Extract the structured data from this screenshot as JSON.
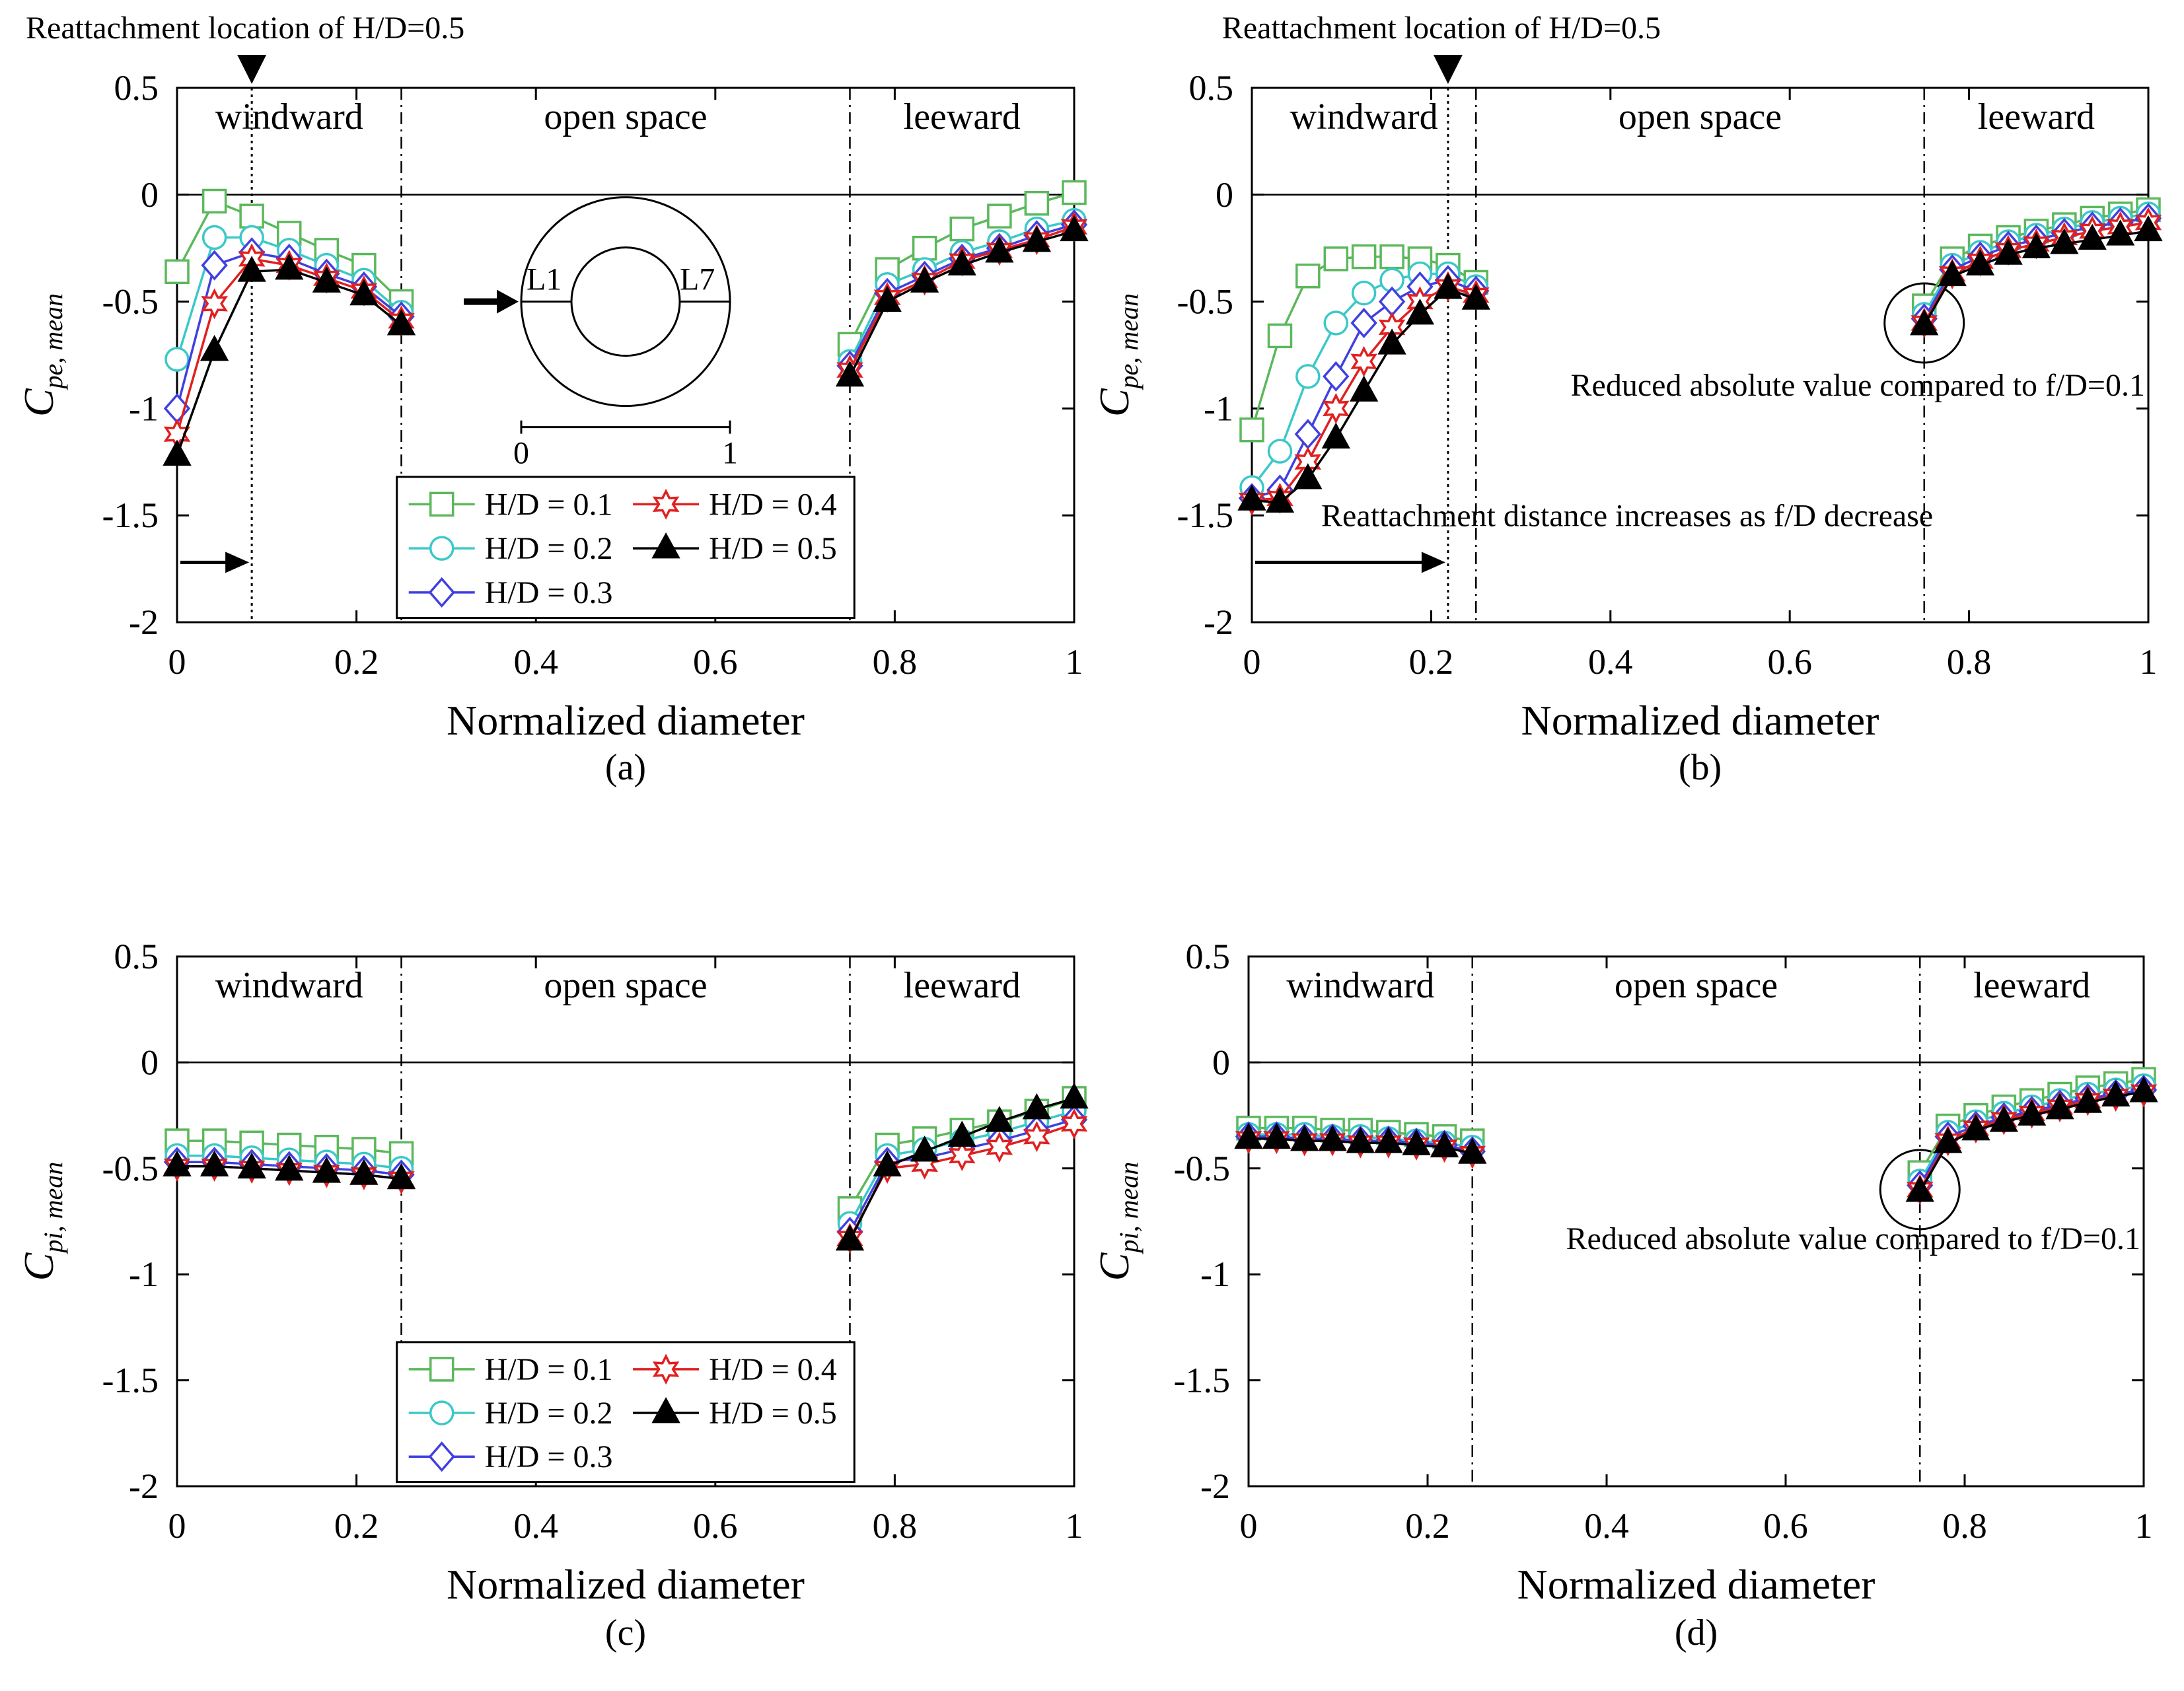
{
  "markers": {
    "s1": "square",
    "s2": "circle",
    "s3": "diamond",
    "s4": "star",
    "s5": "triangle"
  },
  "colors": {
    "s1": "#5cb85c",
    "s2": "#3cc8c8",
    "s3": "#4040e0",
    "s4": "#e02020",
    "s5": "#000000"
  },
  "regions": {
    "windward": "windward",
    "open": "open space",
    "leeward": "leeward"
  },
  "legend_labels": {
    "s1": "H/D = 0.1",
    "s2": "H/D = 0.2",
    "s3": "H/D = 0.3",
    "s4": "H/D = 0.4",
    "s5": "H/D = 0.5"
  },
  "inset": {
    "l1": "L1",
    "l7": "L7",
    "s0": "0",
    "s1": "1"
  },
  "chart_data": [
    {
      "type": "line",
      "panel_label": "(a)",
      "xlabel": "Normalized diameter",
      "ylabel": "C",
      "ylabel_sub": "pe, mean",
      "xlim": [
        0,
        1
      ],
      "ylim": [
        -2,
        0.5
      ],
      "xticks": [
        "0",
        "0.2",
        "0.4",
        "0.6",
        "0.8",
        "1"
      ],
      "yticks": [
        "-2",
        "-1.5",
        "-1",
        "-0.5",
        "0",
        "0.5"
      ],
      "annotations": {
        "top": "Reattachment location of H/D=0.5"
      },
      "series": [
        {
          "name": "H/D = 0.1",
          "x": [
            0,
            0.0417,
            0.0833,
            0.125,
            0.1667,
            0.2083,
            0.25,
            0.75,
            0.7917,
            0.8333,
            0.875,
            0.9167,
            0.9583,
            1
          ],
          "y": [
            -0.36,
            -0.03,
            -0.1,
            -0.18,
            -0.26,
            -0.33,
            -0.5,
            -0.7,
            -0.35,
            -0.25,
            -0.16,
            -0.1,
            -0.04,
            0.01
          ]
        },
        {
          "name": "H/D = 0.2",
          "x": [
            0,
            0.0417,
            0.0833,
            0.125,
            0.1667,
            0.2083,
            0.25,
            0.75,
            0.7917,
            0.8333,
            0.875,
            0.9167,
            0.9583,
            1
          ],
          "y": [
            -0.77,
            -0.2,
            -0.2,
            -0.26,
            -0.33,
            -0.4,
            -0.55,
            -0.78,
            -0.42,
            -0.35,
            -0.27,
            -0.22,
            -0.16,
            -0.12
          ]
        },
        {
          "name": "H/D = 0.3",
          "x": [
            0,
            0.0417,
            0.0833,
            0.125,
            0.1667,
            0.2083,
            0.25,
            0.75,
            0.7917,
            0.8333,
            0.875,
            0.9167,
            0.9583,
            1
          ],
          "y": [
            -1.0,
            -0.33,
            -0.27,
            -0.3,
            -0.37,
            -0.43,
            -0.57,
            -0.8,
            -0.46,
            -0.38,
            -0.3,
            -0.25,
            -0.19,
            -0.14
          ]
        },
        {
          "name": "H/D = 0.4",
          "x": [
            0,
            0.0417,
            0.0833,
            0.125,
            0.1667,
            0.2083,
            0.25,
            0.75,
            0.7917,
            0.8333,
            0.875,
            0.9167,
            0.9583,
            1
          ],
          "y": [
            -1.12,
            -0.51,
            -0.3,
            -0.33,
            -0.39,
            -0.45,
            -0.59,
            -0.82,
            -0.48,
            -0.4,
            -0.31,
            -0.26,
            -0.21,
            -0.15
          ]
        },
        {
          "name": "H/D = 0.5",
          "x": [
            0,
            0.0417,
            0.0833,
            0.125,
            0.1667,
            0.2083,
            0.25,
            0.75,
            0.7917,
            0.8333,
            0.875,
            0.9167,
            0.9583,
            1
          ],
          "y": [
            -1.22,
            -0.73,
            -0.36,
            -0.35,
            -0.41,
            -0.47,
            -0.61,
            -0.85,
            -0.5,
            -0.41,
            -0.33,
            -0.27,
            -0.22,
            -0.17
          ]
        }
      ]
    },
    {
      "type": "line",
      "panel_label": "(b)",
      "xlabel": "Normalized diameter",
      "ylabel": "C",
      "ylabel_sub": "pe, mean",
      "xlim": [
        0,
        1
      ],
      "ylim": [
        -2,
        0.5
      ],
      "xticks": [
        "0",
        "0.2",
        "0.4",
        "0.6",
        "0.8",
        "1"
      ],
      "yticks": [
        "-2",
        "-1.5",
        "-1",
        "-0.5",
        "0",
        "0.5"
      ],
      "annotations": {
        "top": "Reattachment location of H/D=0.5",
        "reduced": "Reduced absolute value compared to f/D=0.1",
        "reattach": "Reattachment distance increases as f/D decrease"
      },
      "series": [
        {
          "name": "H/D = 0.1",
          "x": [
            0,
            0.0313,
            0.0625,
            0.0938,
            0.125,
            0.1563,
            0.1875,
            0.2188,
            0.25,
            0.75,
            0.7813,
            0.8125,
            0.8438,
            0.875,
            0.9063,
            0.9375,
            0.9688,
            1
          ],
          "y": [
            -1.1,
            -0.66,
            -0.38,
            -0.3,
            -0.29,
            -0.29,
            -0.3,
            -0.33,
            -0.41,
            -0.52,
            -0.3,
            -0.24,
            -0.2,
            -0.17,
            -0.14,
            -0.11,
            -0.09,
            -0.07
          ]
        },
        {
          "name": "H/D = 0.2",
          "x": [
            0,
            0.0313,
            0.0625,
            0.0938,
            0.125,
            0.1563,
            0.1875,
            0.2188,
            0.25,
            0.75,
            0.7813,
            0.8125,
            0.8438,
            0.875,
            0.9063,
            0.9375,
            0.9688,
            1
          ],
          "y": [
            -1.37,
            -1.2,
            -0.85,
            -0.6,
            -0.46,
            -0.4,
            -0.37,
            -0.37,
            -0.43,
            -0.56,
            -0.33,
            -0.27,
            -0.22,
            -0.19,
            -0.16,
            -0.13,
            -0.11,
            -0.09
          ]
        },
        {
          "name": "H/D = 0.3",
          "x": [
            0,
            0.0313,
            0.0625,
            0.0938,
            0.125,
            0.1563,
            0.1875,
            0.2188,
            0.25,
            0.75,
            0.7813,
            0.8125,
            0.8438,
            0.875,
            0.9063,
            0.9375,
            0.9688,
            1
          ],
          "y": [
            -1.42,
            -1.38,
            -1.12,
            -0.85,
            -0.6,
            -0.5,
            -0.43,
            -0.4,
            -0.45,
            -0.58,
            -0.35,
            -0.29,
            -0.24,
            -0.21,
            -0.18,
            -0.15,
            -0.13,
            -0.11
          ]
        },
        {
          "name": "H/D = 0.4",
          "x": [
            0,
            0.0313,
            0.0625,
            0.0938,
            0.125,
            0.1563,
            0.1875,
            0.2188,
            0.25,
            0.75,
            0.7813,
            0.8125,
            0.8438,
            0.875,
            0.9063,
            0.9375,
            0.9688,
            1
          ],
          "y": [
            -1.43,
            -1.42,
            -1.25,
            -1.0,
            -0.78,
            -0.62,
            -0.5,
            -0.43,
            -0.47,
            -0.6,
            -0.37,
            -0.31,
            -0.26,
            -0.23,
            -0.2,
            -0.17,
            -0.15,
            -0.13
          ]
        },
        {
          "name": "H/D = 0.5",
          "x": [
            0,
            0.0313,
            0.0625,
            0.0938,
            0.125,
            0.1563,
            0.1875,
            0.2188,
            0.25,
            0.75,
            0.7813,
            0.8125,
            0.8438,
            0.875,
            0.9063,
            0.9375,
            0.9688,
            1
          ],
          "y": [
            -1.43,
            -1.44,
            -1.33,
            -1.14,
            -0.92,
            -0.7,
            -0.56,
            -0.44,
            -0.49,
            -0.61,
            -0.38,
            -0.33,
            -0.28,
            -0.25,
            -0.23,
            -0.21,
            -0.19,
            -0.17
          ]
        }
      ]
    },
    {
      "type": "line",
      "panel_label": "(c)",
      "xlabel": "Normalized diameter",
      "ylabel": "C",
      "ylabel_sub": "pi, mean",
      "xlim": [
        0,
        1
      ],
      "ylim": [
        -2,
        0.5
      ],
      "xticks": [
        "0",
        "0.2",
        "0.4",
        "0.6",
        "0.8",
        "1"
      ],
      "yticks": [
        "-2",
        "-1.5",
        "-1",
        "-0.5",
        "0",
        "0.5"
      ],
      "annotations": {},
      "series": [
        {
          "name": "H/D = 0.1",
          "x": [
            0,
            0.0417,
            0.0833,
            0.125,
            0.1667,
            0.2083,
            0.25,
            0.75,
            0.7917,
            0.8333,
            0.875,
            0.9167,
            0.9583,
            1
          ],
          "y": [
            -0.37,
            -0.37,
            -0.38,
            -0.39,
            -0.4,
            -0.41,
            -0.43,
            -0.69,
            -0.39,
            -0.36,
            -0.32,
            -0.28,
            -0.23,
            -0.17
          ]
        },
        {
          "name": "H/D = 0.2",
          "x": [
            0,
            0.0417,
            0.0833,
            0.125,
            0.1667,
            0.2083,
            0.25,
            0.75,
            0.7917,
            0.8333,
            0.875,
            0.9167,
            0.9583,
            1
          ],
          "y": [
            -0.44,
            -0.44,
            -0.45,
            -0.46,
            -0.47,
            -0.48,
            -0.5,
            -0.76,
            -0.44,
            -0.41,
            -0.37,
            -0.33,
            -0.28,
            -0.23
          ]
        },
        {
          "name": "H/D = 0.3",
          "x": [
            0,
            0.0417,
            0.0833,
            0.125,
            0.1667,
            0.2083,
            0.25,
            0.75,
            0.7917,
            0.8333,
            0.875,
            0.9167,
            0.9583,
            1
          ],
          "y": [
            -0.47,
            -0.47,
            -0.48,
            -0.49,
            -0.5,
            -0.51,
            -0.53,
            -0.8,
            -0.47,
            -0.45,
            -0.41,
            -0.37,
            -0.32,
            -0.27
          ]
        },
        {
          "name": "H/D = 0.4",
          "x": [
            0,
            0.0417,
            0.0833,
            0.125,
            0.1667,
            0.2083,
            0.25,
            0.75,
            0.7917,
            0.8333,
            0.875,
            0.9167,
            0.9583,
            1
          ],
          "y": [
            -0.49,
            -0.49,
            -0.5,
            -0.51,
            -0.52,
            -0.53,
            -0.55,
            -0.83,
            -0.5,
            -0.48,
            -0.44,
            -0.4,
            -0.35,
            -0.29
          ]
        },
        {
          "name": "H/D = 0.5",
          "x": [
            0,
            0.0417,
            0.0833,
            0.125,
            0.1667,
            0.2083,
            0.25,
            0.75,
            0.7917,
            0.8333,
            0.875,
            0.9167,
            0.9583,
            1
          ],
          "y": [
            -0.49,
            -0.49,
            -0.5,
            -0.51,
            -0.52,
            -0.53,
            -0.55,
            -0.84,
            -0.49,
            -0.42,
            -0.35,
            -0.28,
            -0.22,
            -0.17
          ]
        }
      ]
    },
    {
      "type": "line",
      "panel_label": "(d)",
      "xlabel": "Normalized diameter",
      "ylabel": "C",
      "ylabel_sub": "pi, mean",
      "xlim": [
        0,
        1
      ],
      "ylim": [
        -2,
        0.5
      ],
      "xticks": [
        "0",
        "0.2",
        "0.4",
        "0.6",
        "0.8",
        "1"
      ],
      "yticks": [
        "-2",
        "-1.5",
        "-1",
        "-0.5",
        "0",
        "0.5"
      ],
      "annotations": {
        "reduced": "Reduced absolute value compared to f/D=0.1"
      },
      "series": [
        {
          "name": "H/D = 0.1",
          "x": [
            0,
            0.0313,
            0.0625,
            0.0938,
            0.125,
            0.1563,
            0.1875,
            0.2188,
            0.25,
            0.75,
            0.7813,
            0.8125,
            0.8438,
            0.875,
            0.9063,
            0.9375,
            0.9688,
            1
          ],
          "y": [
            -0.31,
            -0.31,
            -0.31,
            -0.32,
            -0.32,
            -0.33,
            -0.34,
            -0.35,
            -0.37,
            -0.52,
            -0.3,
            -0.25,
            -0.21,
            -0.18,
            -0.15,
            -0.12,
            -0.1,
            -0.08
          ]
        },
        {
          "name": "H/D = 0.2",
          "x": [
            0,
            0.0313,
            0.0625,
            0.0938,
            0.125,
            0.1563,
            0.1875,
            0.2188,
            0.25,
            0.75,
            0.7813,
            0.8125,
            0.8438,
            0.875,
            0.9063,
            0.9375,
            0.9688,
            1
          ],
          "y": [
            -0.34,
            -0.34,
            -0.34,
            -0.35,
            -0.35,
            -0.36,
            -0.37,
            -0.38,
            -0.4,
            -0.56,
            -0.33,
            -0.28,
            -0.24,
            -0.21,
            -0.18,
            -0.15,
            -0.13,
            -0.11
          ]
        },
        {
          "name": "H/D = 0.3",
          "x": [
            0,
            0.0313,
            0.0625,
            0.0938,
            0.125,
            0.1563,
            0.1875,
            0.2188,
            0.25,
            0.75,
            0.7813,
            0.8125,
            0.8438,
            0.875,
            0.9063,
            0.9375,
            0.9688,
            1
          ],
          "y": [
            -0.35,
            -0.35,
            -0.36,
            -0.36,
            -0.37,
            -0.37,
            -0.38,
            -0.39,
            -0.42,
            -0.58,
            -0.35,
            -0.3,
            -0.26,
            -0.23,
            -0.2,
            -0.17,
            -0.15,
            -0.13
          ]
        },
        {
          "name": "H/D = 0.4",
          "x": [
            0,
            0.0313,
            0.0625,
            0.0938,
            0.125,
            0.1563,
            0.1875,
            0.2188,
            0.25,
            0.75,
            0.7813,
            0.8125,
            0.8438,
            0.875,
            0.9063,
            0.9375,
            0.9688,
            1
          ],
          "y": [
            -0.36,
            -0.36,
            -0.37,
            -0.37,
            -0.38,
            -0.38,
            -0.39,
            -0.4,
            -0.43,
            -0.6,
            -0.37,
            -0.31,
            -0.27,
            -0.24,
            -0.21,
            -0.18,
            -0.16,
            -0.14
          ]
        },
        {
          "name": "H/D = 0.5",
          "x": [
            0,
            0.0313,
            0.0625,
            0.0938,
            0.125,
            0.1563,
            0.1875,
            0.2188,
            0.25,
            0.75,
            0.7813,
            0.8125,
            0.8438,
            0.875,
            0.9063,
            0.9375,
            0.9688,
            1
          ],
          "y": [
            -0.36,
            -0.36,
            -0.37,
            -0.37,
            -0.38,
            -0.38,
            -0.39,
            -0.4,
            -0.43,
            -0.61,
            -0.38,
            -0.32,
            -0.28,
            -0.25,
            -0.22,
            -0.19,
            -0.16,
            -0.14
          ]
        }
      ]
    }
  ]
}
